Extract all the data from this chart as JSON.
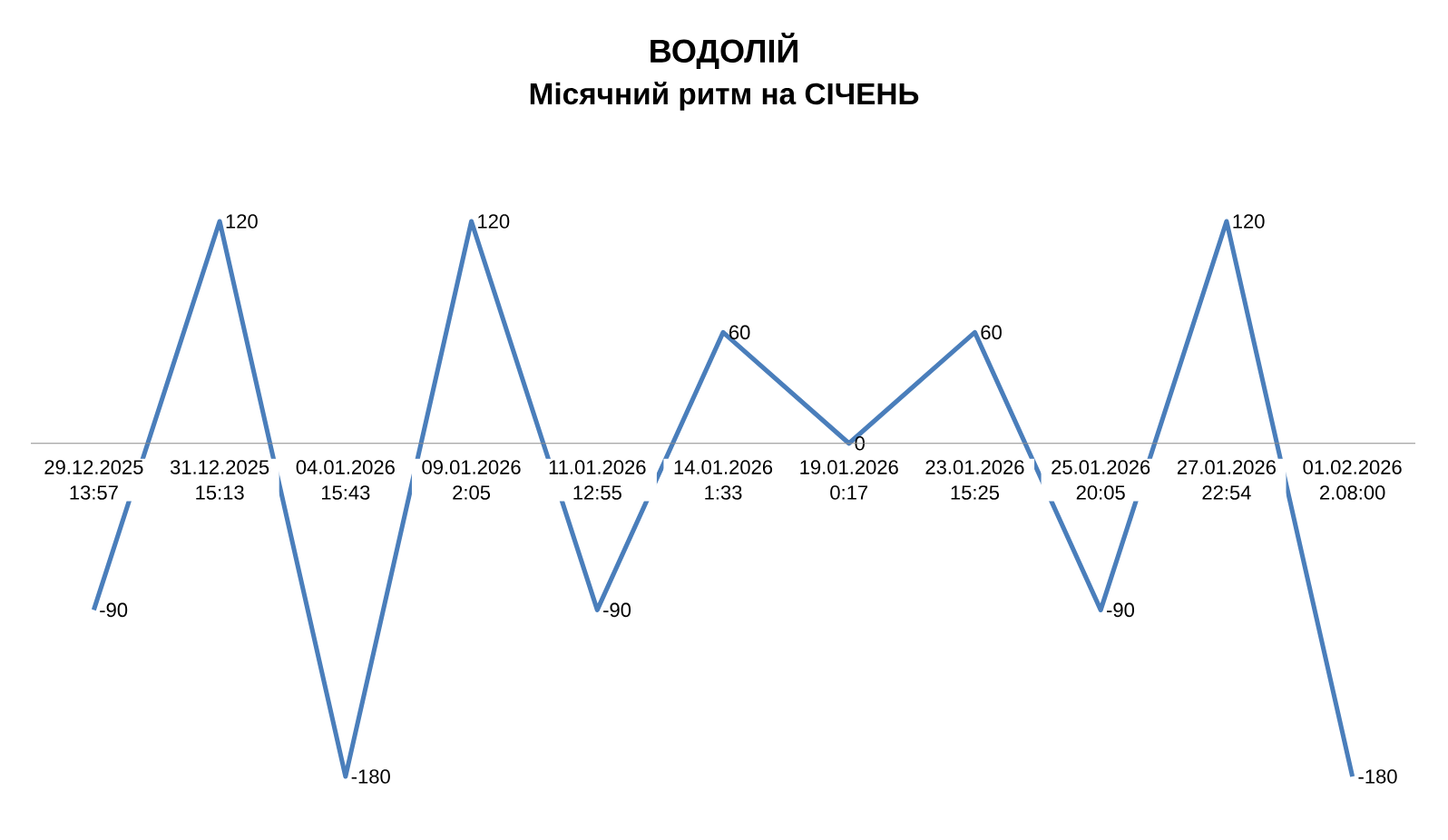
{
  "chart_data": {
    "type": "line",
    "title": "ВОДОЛІЙ",
    "subtitle": "Місячний ритм на СІЧЕНЬ",
    "categories": [
      "29.12.2025 13:57",
      "31.12.2025 15:13",
      "04.01.2026 15:43",
      "09.01.2026 2:05",
      "11.01.2026 12:55",
      "14.01.2026 1:33",
      "19.01.2026 0:17",
      "23.01.2026 15:25",
      "25.01.2026 20:05",
      "27.01.2026 22:54",
      "01.02.2026 2.08:00"
    ],
    "values": [
      -90,
      120,
      -180,
      120,
      -90,
      60,
      0,
      60,
      -90,
      120,
      -180
    ],
    "color": "#4a7ebb",
    "data_labels": true,
    "line_style": "solid"
  }
}
